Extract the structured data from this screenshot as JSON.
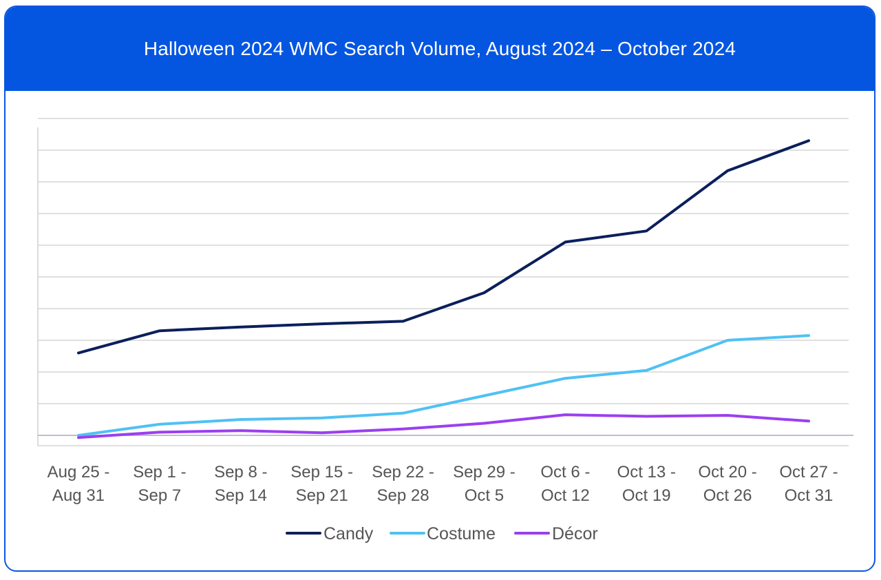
{
  "title": "Halloween 2024 WMC Search Volume, August 2024 – October 2024",
  "colors": {
    "header": "#0456e0",
    "candy": "#0b1f5c",
    "costume": "#4fc1f4",
    "decor": "#9b3ff0"
  },
  "chart_data": {
    "type": "line",
    "title": "Halloween 2024 WMC Search Volume, August 2024 – October 2024",
    "xlabel": "",
    "ylabel": "",
    "ylim": [
      0,
      10
    ],
    "grid": true,
    "legend_position": "bottom-center",
    "categories": [
      [
        "Aug 25 -",
        "Aug 31"
      ],
      [
        "Sep 1 -",
        "Sep 7"
      ],
      [
        "Sep 8 -",
        "Sep 14"
      ],
      [
        "Sep 15 -",
        "Sep 21"
      ],
      [
        "Sep 22 -",
        "Sep 28"
      ],
      [
        "Sep 29 -",
        "Oct 5"
      ],
      [
        "Oct 6 -",
        "Oct 12"
      ],
      [
        "Oct 13 -",
        "Oct 19"
      ],
      [
        "Oct 20 -",
        "Oct 26"
      ],
      [
        "Oct 27 -",
        "Oct 31"
      ]
    ],
    "series": [
      {
        "name": "Candy",
        "color": "#0b1f5c",
        "values": [
          2.6,
          3.3,
          3.42,
          3.52,
          3.6,
          4.5,
          6.1,
          6.45,
          8.35,
          9.3
        ]
      },
      {
        "name": "Costume",
        "color": "#4fc1f4",
        "values": [
          0.0,
          0.35,
          0.5,
          0.55,
          0.7,
          1.25,
          1.8,
          2.05,
          3.0,
          3.15
        ]
      },
      {
        "name": "Décor",
        "color": "#9b3ff0",
        "values": [
          -0.07,
          0.1,
          0.15,
          0.08,
          0.2,
          0.38,
          0.65,
          0.6,
          0.63,
          0.45
        ]
      }
    ]
  }
}
